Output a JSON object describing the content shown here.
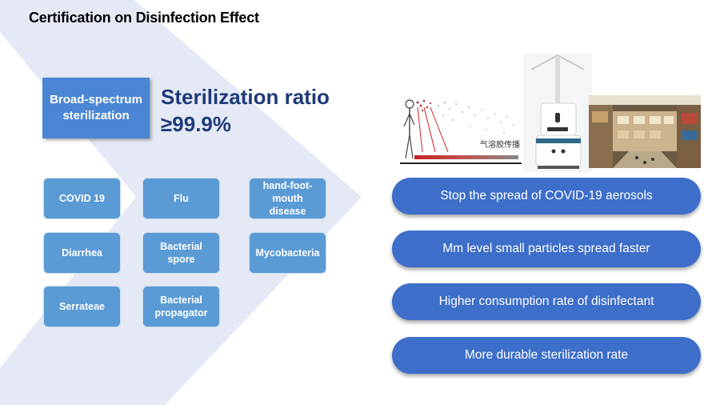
{
  "title": "Certification on Disinfection Effect",
  "broad": "Broad-spectrum sterilization",
  "ratio": {
    "line1": "Sterilization ratio",
    "line2": "≥99.9%"
  },
  "pathogens": [
    "COVID 19",
    "Flu",
    "hand-foot-mouth disease",
    "Diarrhea",
    "Bacterial spore",
    "Mycobacteria",
    "Serrateae",
    "Bacterial propagator"
  ],
  "aerosol_image_caption": "气溶胶传播",
  "benefits": [
    "Stop the spread of COVID-19 aerosols",
    "Mm level small particles spread faster",
    "Higher consumption rate of disinfectant",
    "More durable sterilization rate"
  ],
  "colors": {
    "tile": "#5b9bd5",
    "box": "#4a86d4",
    "pill": "#3d6ec9",
    "heading": "#1f3a7a",
    "chevron": "#e4e9f5"
  }
}
